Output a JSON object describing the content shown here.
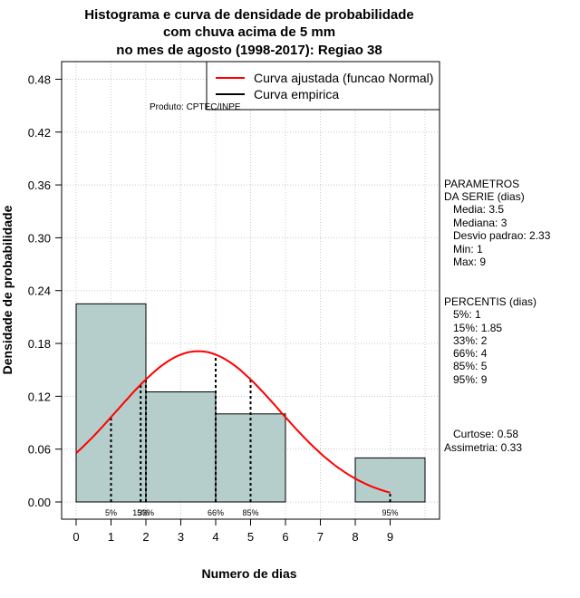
{
  "chart_data": {
    "type": "bar",
    "title": [
      "Histograma e curva de densidade de probabilidade",
      "com chuva acima de 5 mm",
      "no mes de agosto (1998-2017): Regiao 38"
    ],
    "xlabel": "Numero de dias",
    "ylabel": "Densidade de probabilidade",
    "xlim": [
      -0.5,
      10.5
    ],
    "ylim": [
      0,
      0.5
    ],
    "xticks": [
      0,
      1,
      2,
      3,
      4,
      5,
      6,
      7,
      8,
      9
    ],
    "yticks": [
      "0.00",
      "0.06",
      "0.12",
      "0.18",
      "0.24",
      "0.30",
      "0.36",
      "0.42",
      "0.48"
    ],
    "bins": [
      {
        "from": 0,
        "to": 2,
        "density": 0.225
      },
      {
        "from": 2,
        "to": 4,
        "density": 0.125
      },
      {
        "from": 4,
        "to": 6,
        "density": 0.1
      },
      {
        "from": 6,
        "to": 8,
        "density": 0.0
      },
      {
        "from": 8,
        "to": 10,
        "density": 0.05
      }
    ],
    "fit_curve": {
      "name": "Curva ajustada (funcao Normal)",
      "color": "#ff0000",
      "mean": 3.5,
      "sd": 2.33,
      "x_range": [
        0,
        9
      ]
    },
    "percentile_lines": [
      {
        "label": "5%",
        "x": 1
      },
      {
        "label": "15%",
        "x": 1.85
      },
      {
        "label": "33%",
        "x": 2
      },
      {
        "label": "66%",
        "x": 4
      },
      {
        "label": "85%",
        "x": 5
      },
      {
        "label": "95%",
        "x": 9
      }
    ],
    "legend": [
      {
        "label": "Curva ajustada (funcao Normal)",
        "color": "#ff0000"
      },
      {
        "label": "Curva empirica",
        "color": "#000000"
      }
    ],
    "legend_position": "top-right",
    "bar_color": "#b5cdcb",
    "grid": true
  },
  "credit": "Produto: CPTEC/INPE",
  "side_panel": {
    "parametros": [
      "PARAMETROS",
      "DA SERIE (dias)",
      "   Media: 3.5",
      "   Mediana: 3",
      "   Desvio padrao: 2.33",
      "   Min: 1",
      "   Max: 9"
    ],
    "percentis": [
      "PERCENTIS (dias)",
      "   5%: 1",
      "   15%: 1.85",
      "   33%: 2",
      "   66%: 4",
      "   85%: 5",
      "   95%: 9"
    ],
    "curtose": "   Curtose: 0.58",
    "assimetria": "Assimetria: 0.33"
  }
}
